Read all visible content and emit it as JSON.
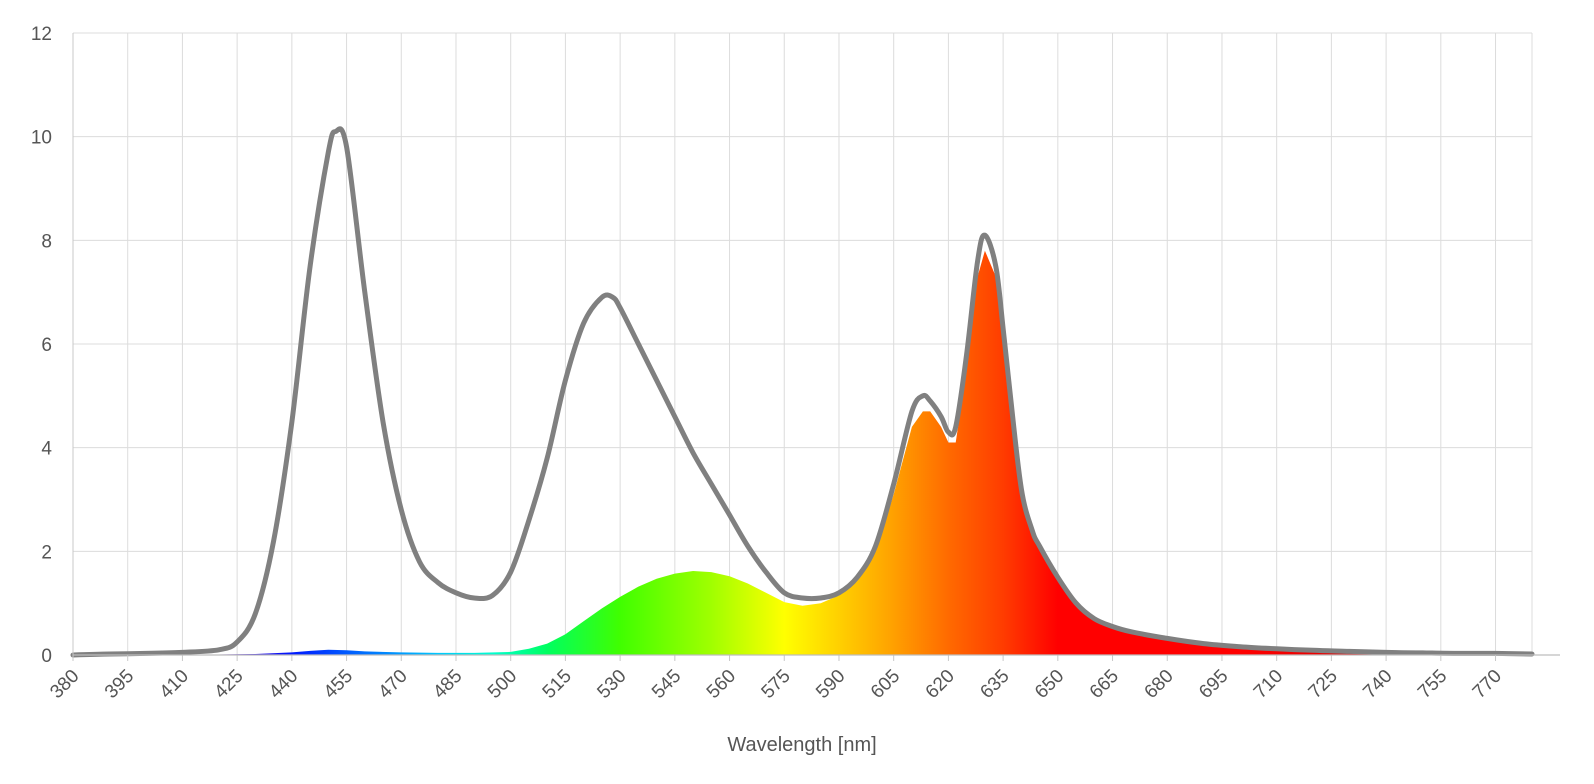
{
  "chart_data": {
    "type": "area",
    "title": "",
    "xlabel": "Wavelength [nm]",
    "ylabel": "",
    "xlim": [
      380,
      780
    ],
    "ylim": [
      0,
      12
    ],
    "y_ticks": [
      0,
      2,
      4,
      6,
      8,
      10,
      12
    ],
    "x_ticks": [
      380,
      395,
      410,
      425,
      440,
      455,
      470,
      485,
      500,
      515,
      530,
      545,
      560,
      575,
      590,
      605,
      620,
      635,
      650,
      665,
      680,
      695,
      710,
      725,
      740,
      755,
      770
    ],
    "x_tick_rotation": -45,
    "grid": true,
    "legend": "none",
    "series": [
      {
        "role": "spectrum-outline",
        "color": "#808080",
        "x": [
          380,
          390,
          400,
          410,
          420,
          425,
          430,
          435,
          440,
          445,
          450,
          452,
          455,
          460,
          465,
          470,
          475,
          480,
          485,
          490,
          495,
          500,
          505,
          510,
          515,
          520,
          525,
          528,
          530,
          535,
          540,
          545,
          550,
          555,
          560,
          565,
          570,
          575,
          580,
          585,
          590,
          595,
          600,
          605,
          610,
          613,
          615,
          618,
          620,
          622,
          625,
          628,
          630,
          633,
          635,
          637,
          640,
          643,
          645,
          650,
          655,
          660,
          665,
          670,
          680,
          690,
          700,
          710,
          720,
          730,
          740,
          750,
          760,
          770,
          780
        ],
        "y": [
          0.0,
          0.02,
          0.03,
          0.05,
          0.1,
          0.25,
          0.8,
          2.2,
          4.5,
          7.5,
          9.7,
          10.1,
          9.8,
          7.0,
          4.5,
          2.8,
          1.8,
          1.4,
          1.2,
          1.1,
          1.15,
          1.6,
          2.6,
          3.8,
          5.3,
          6.4,
          6.9,
          6.9,
          6.7,
          6.0,
          5.3,
          4.6,
          3.9,
          3.3,
          2.7,
          2.1,
          1.6,
          1.2,
          1.1,
          1.1,
          1.2,
          1.5,
          2.1,
          3.3,
          4.7,
          5.0,
          4.9,
          4.6,
          4.3,
          4.4,
          5.8,
          7.6,
          8.1,
          7.5,
          6.3,
          5.0,
          3.2,
          2.4,
          2.1,
          1.5,
          1.0,
          0.7,
          0.55,
          0.45,
          0.32,
          0.22,
          0.16,
          0.12,
          0.09,
          0.07,
          0.05,
          0.04,
          0.03,
          0.03,
          0.02
        ]
      },
      {
        "role": "color-fill",
        "x": [
          380,
          390,
          400,
          410,
          420,
          430,
          440,
          445,
          450,
          455,
          460,
          470,
          480,
          490,
          500,
          505,
          510,
          515,
          520,
          525,
          530,
          535,
          540,
          545,
          550,
          555,
          560,
          565,
          570,
          575,
          580,
          585,
          590,
          595,
          600,
          605,
          610,
          613,
          615,
          618,
          620,
          622,
          625,
          628,
          630,
          633,
          635,
          637,
          640,
          643,
          645,
          650,
          655,
          660,
          665,
          670,
          680,
          690,
          700,
          710,
          720,
          730,
          740,
          750,
          760,
          770,
          780
        ],
        "y": [
          0.0,
          0.01,
          0.01,
          0.01,
          0.01,
          0.02,
          0.05,
          0.08,
          0.1,
          0.09,
          0.07,
          0.05,
          0.04,
          0.04,
          0.06,
          0.12,
          0.22,
          0.4,
          0.65,
          0.9,
          1.12,
          1.32,
          1.47,
          1.57,
          1.62,
          1.6,
          1.52,
          1.38,
          1.2,
          1.02,
          0.95,
          1.0,
          1.15,
          1.45,
          2.0,
          3.1,
          4.4,
          4.7,
          4.7,
          4.4,
          4.1,
          4.1,
          5.5,
          7.3,
          7.8,
          7.3,
          6.2,
          4.9,
          3.2,
          2.4,
          2.1,
          1.5,
          1.0,
          0.7,
          0.55,
          0.45,
          0.32,
          0.22,
          0.16,
          0.12,
          0.09,
          0.07,
          0.05,
          0.04,
          0.03,
          0.03,
          0.02
        ]
      }
    ]
  }
}
